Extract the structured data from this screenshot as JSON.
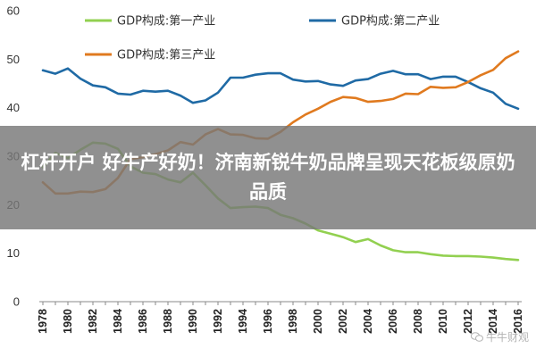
{
  "banner": {
    "title": "杠杆开户 好牛产好奶！济南新锐牛奶品牌呈现天花板级原奶品质"
  },
  "watermark": {
    "text": "牛牛财观",
    "icon": "wechat-icon"
  },
  "colors": {
    "primary": "#92D050",
    "secondary": "#1F6AA5",
    "tertiary": "#E07A1F",
    "banner": "#787878"
  },
  "chart_data": {
    "type": "line",
    "title": "",
    "xlabel": "",
    "ylabel": "",
    "ylim": [
      0,
      60
    ],
    "yticks": [
      0,
      10,
      20,
      30,
      40,
      50,
      60
    ],
    "xlim": [
      1978,
      2016
    ],
    "xticks": [
      1978,
      1980,
      1982,
      1984,
      1986,
      1988,
      1990,
      1992,
      1994,
      1996,
      1998,
      2000,
      2002,
      2004,
      2006,
      2008,
      2010,
      2012,
      2014,
      2016
    ],
    "grid": false,
    "legend_position": "top",
    "x": [
      1978,
      1979,
      1980,
      1981,
      1982,
      1983,
      1984,
      1985,
      1986,
      1987,
      1988,
      1989,
      1990,
      1991,
      1992,
      1993,
      1994,
      1995,
      1996,
      1997,
      1998,
      1999,
      2000,
      2001,
      2002,
      2003,
      2004,
      2005,
      2006,
      2007,
      2008,
      2009,
      2010,
      2011,
      2012,
      2013,
      2014,
      2015,
      2016
    ],
    "series": [
      {
        "name": "GDP构成:第一产业",
        "color_key": "primary",
        "values": [
          27.7,
          30.7,
          29.6,
          31.3,
          32.8,
          32.6,
          31.5,
          27.9,
          26.6,
          26.3,
          25.2,
          24.6,
          26.6,
          24.0,
          21.3,
          19.3,
          19.5,
          19.6,
          19.3,
          17.9,
          17.2,
          16.1,
          14.7,
          14.0,
          13.3,
          12.3,
          12.9,
          11.6,
          10.6,
          10.2,
          10.2,
          9.8,
          9.5,
          9.4,
          9.4,
          9.3,
          9.1,
          8.8,
          8.6
        ]
      },
      {
        "name": "GDP构成:第二产业",
        "color_key": "secondary",
        "values": [
          47.7,
          47.0,
          48.1,
          46.0,
          44.6,
          44.2,
          42.9,
          42.7,
          43.5,
          43.3,
          43.5,
          42.5,
          41.0,
          41.5,
          43.1,
          46.2,
          46.2,
          46.8,
          47.1,
          47.1,
          45.8,
          45.4,
          45.5,
          44.8,
          44.5,
          45.6,
          45.9,
          47.0,
          47.6,
          46.9,
          46.9,
          45.9,
          46.4,
          46.4,
          45.3,
          44.0,
          43.1,
          40.8,
          39.8
        ]
      },
      {
        "name": "GDP构成:第三产业",
        "color_key": "tertiary",
        "values": [
          24.6,
          22.3,
          22.3,
          22.7,
          22.6,
          23.2,
          25.5,
          29.4,
          29.8,
          30.4,
          31.2,
          32.9,
          32.4,
          34.5,
          35.6,
          34.5,
          34.4,
          33.7,
          33.6,
          35.0,
          37.0,
          38.6,
          39.8,
          41.2,
          42.2,
          42.0,
          41.2,
          41.4,
          41.8,
          42.9,
          42.8,
          44.3,
          44.1,
          44.2,
          45.3,
          46.7,
          47.8,
          50.2,
          51.6
        ]
      }
    ]
  }
}
